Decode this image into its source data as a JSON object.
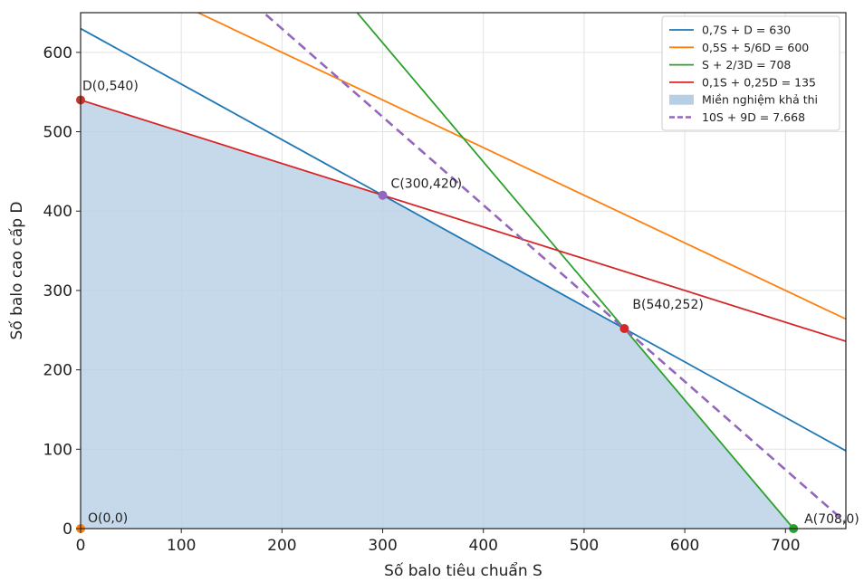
{
  "chart_data": {
    "type": "line",
    "xlabel": "Số balo tiêu chuẩn S",
    "ylabel": "Số balo cao cấp D",
    "xlim": [
      0,
      760
    ],
    "ylim": [
      0,
      650
    ],
    "xticks": [
      0,
      100,
      200,
      300,
      400,
      500,
      600,
      700
    ],
    "yticks": [
      0,
      100,
      200,
      300,
      400,
      500,
      600
    ],
    "grid": true,
    "legend_position": "top-right",
    "series": [
      {
        "name": "0,7S + D = 630",
        "color": "#1f77b4",
        "style": "solid",
        "x": [
          0,
          760
        ],
        "y": [
          630,
          98
        ]
      },
      {
        "name": "0,5S + 5/6D = 600",
        "color": "#ff7f0e",
        "style": "solid",
        "x": [
          0,
          760
        ],
        "y": [
          720,
          264
        ]
      },
      {
        "name": "S + 2/3D = 708",
        "color": "#2ca02c",
        "style": "solid",
        "x": [
          0,
          708
        ],
        "y": [
          1062,
          0
        ]
      },
      {
        "name": "0,1S + 0,25D = 135",
        "color": "#d62728",
        "style": "solid",
        "x": [
          0,
          760
        ],
        "y": [
          540,
          236
        ]
      },
      {
        "name": "10S + 9D = 7.668",
        "color": "#9467bd",
        "style": "dashed",
        "x": [
          0,
          766.8
        ],
        "y": [
          852,
          0
        ]
      }
    ],
    "feasible_region": {
      "name": "Miền nghiệm khả thi",
      "color": "#b6cfe5",
      "polygon": [
        [
          0,
          0
        ],
        [
          708,
          0
        ],
        [
          540,
          252
        ],
        [
          300,
          420
        ],
        [
          0,
          540
        ]
      ]
    },
    "points": [
      {
        "label": "O(0,0)",
        "x": 0,
        "y": 0,
        "color": "#ff7f0e"
      },
      {
        "label": "A(708,0)",
        "x": 708,
        "y": 0,
        "color": "#2ca02c"
      },
      {
        "label": "B(540,252)",
        "x": 540,
        "y": 252,
        "color": "#d62728"
      },
      {
        "label": "C(300,420)",
        "x": 300,
        "y": 420,
        "color": "#9467bd"
      },
      {
        "label": "D(0,540)",
        "x": 0,
        "y": 540,
        "color": "#c0392b"
      }
    ]
  }
}
